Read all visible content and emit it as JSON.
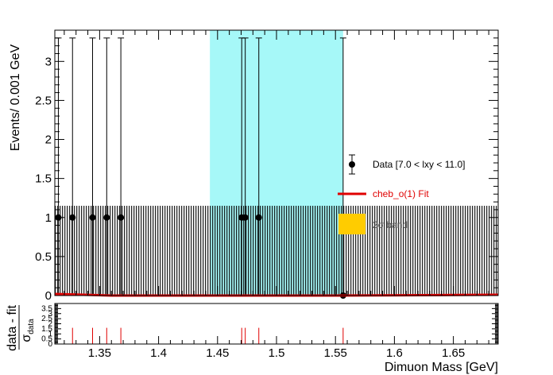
{
  "chart_data": [
    {
      "type": "scatter",
      "panel": "main",
      "xlabel": "Dimuon Mass [GeV]",
      "ylabel": "Events/ 0.001 GeV",
      "xlim": [
        1.312,
        1.688
      ],
      "ylim": [
        0,
        3.4
      ],
      "x_ticks": [
        1.35,
        1.4,
        1.45,
        1.5,
        1.55,
        1.6,
        1.65
      ],
      "x_tick_labels": [
        "1.35",
        "1.4",
        "1.45",
        "1.5",
        "1.55",
        "1.6",
        "1.65"
      ],
      "y_ticks": [
        0,
        0.5,
        1,
        1.5,
        2,
        2.5,
        3
      ],
      "y_tick_labels": [
        "0",
        "0.5",
        "1",
        "1.5",
        "2",
        "2.5",
        "3"
      ],
      "signal_region": [
        1.4435,
        1.5565
      ],
      "signal_region_color": "#a6f8f8",
      "data_color": "#000000",
      "fit_color": "#e00000",
      "hatch_color": "#000000",
      "yellow_band_color": "#ffcc00",
      "points": [
        {
          "x": 1.315,
          "y": 1
        },
        {
          "x": 1.327,
          "y": 1
        },
        {
          "x": 1.344,
          "y": 1
        },
        {
          "x": 1.356,
          "y": 1
        },
        {
          "x": 1.368,
          "y": 1
        },
        {
          "x": 1.4705,
          "y": 1
        },
        {
          "x": 1.4735,
          "y": 1
        },
        {
          "x": 1.485,
          "y": 1
        },
        {
          "x": 1.5565,
          "y": 0
        }
      ],
      "error_top": 3.3,
      "band_top": 1.15,
      "fit_line": [
        [
          1.312,
          0.02
        ],
        [
          1.36,
          0.0
        ],
        [
          1.45,
          0.0
        ],
        [
          1.55,
          0.0
        ],
        [
          1.688,
          0.01
        ]
      ],
      "legend": [
        {
          "label": "Data [7.0 < lxy < 11.0]",
          "kind": "point"
        },
        {
          "label": "cheb_o(1) Fit",
          "kind": "line"
        },
        {
          "label": "2σ band",
          "kind": "box"
        }
      ]
    },
    {
      "type": "bar",
      "panel": "ratio",
      "ylabel": "data - fit",
      "ylabel_denominator": "σ",
      "ylabel_denominator_sub": "data",
      "ylim": [
        0,
        4
      ],
      "y_ticks": [
        0,
        0.5,
        1,
        1.5,
        2,
        2.5,
        3,
        3.5
      ],
      "y_tick_labels": [
        "0",
        "0.5",
        "1",
        "1.5",
        "2",
        "2.5",
        "3",
        "3.5"
      ],
      "bar_color": "#e00000",
      "x": [
        1.327,
        1.344,
        1.356,
        1.368,
        1.4705,
        1.4735,
        1.485,
        1.5565
      ],
      "values": [
        1.0,
        1.0,
        1.0,
        1.0,
        1.0,
        1.0,
        1.0,
        1.0
      ]
    }
  ]
}
